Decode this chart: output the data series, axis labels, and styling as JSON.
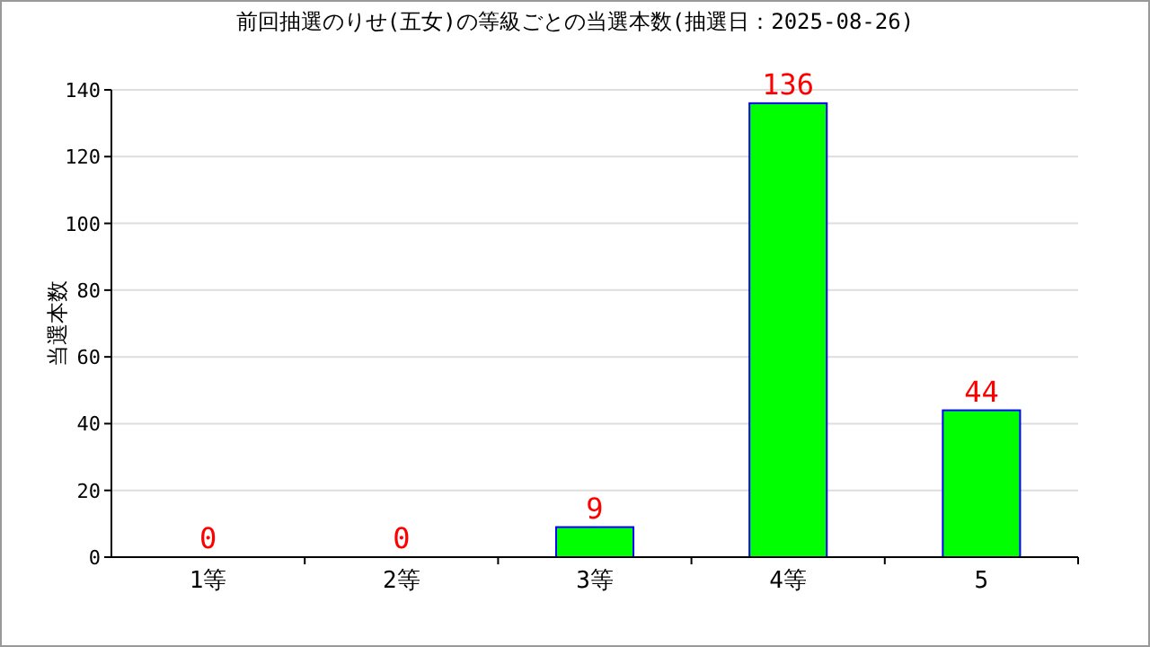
{
  "chart_data": {
    "type": "bar",
    "title": "前回抽選のりせ(五女)の等級ごとの当選本数(抽選日：2025-08-26)",
    "ylabel": "当選本数",
    "categories": [
      "1等",
      "2等",
      "3等",
      "4等",
      "5"
    ],
    "series": [
      {
        "color": "#00ff00",
        "values": [
          0,
          0,
          9,
          136,
          44
        ]
      }
    ],
    "ylim": [
      0,
      140
    ],
    "yticks": [
      0,
      20,
      40,
      60,
      80,
      100,
      120,
      140
    ],
    "grid": "y",
    "data_labels": true
  }
}
